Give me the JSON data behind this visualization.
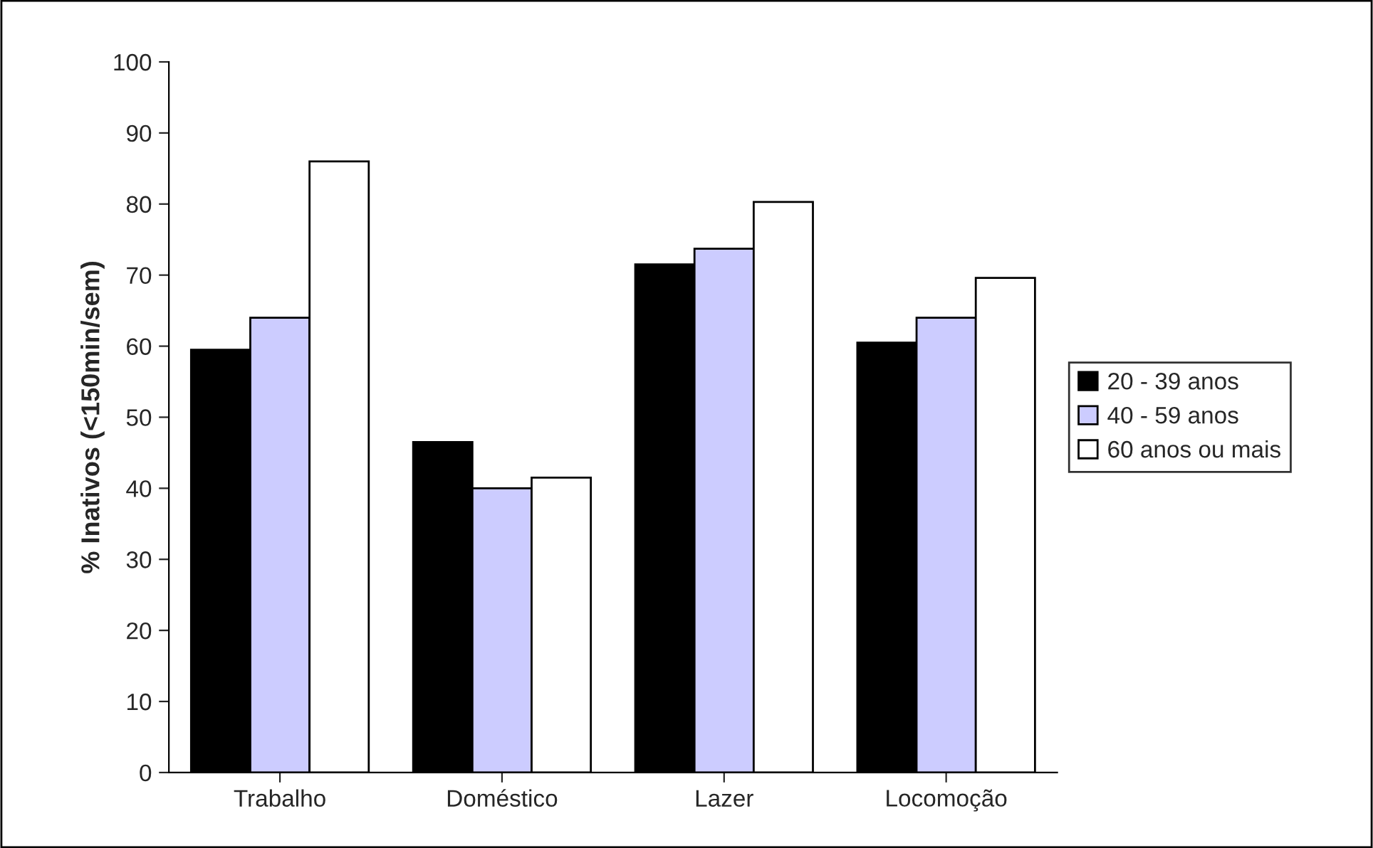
{
  "chart_data": {
    "type": "bar",
    "ylabel": "% Inativos (<150min/sem)",
    "categories": [
      "Trabalho",
      "Doméstico",
      "Lazer",
      "Locomoção"
    ],
    "series": [
      {
        "name": "20 - 39 anos",
        "color": "#000000",
        "values": [
          59.5,
          46.5,
          71.5,
          60.5
        ]
      },
      {
        "name": "40 - 59 anos",
        "color": "#ccccff",
        "values": [
          64,
          40,
          73.7,
          64
        ]
      },
      {
        "name": "60 anos ou mais",
        "color": "#ffffff",
        "values": [
          86,
          41.5,
          80.3,
          69.6
        ]
      }
    ],
    "ylim": [
      0,
      100
    ],
    "yticks": [
      0,
      10,
      20,
      30,
      40,
      50,
      60,
      70,
      80,
      90,
      100
    ],
    "grid": false,
    "legend": "right"
  }
}
